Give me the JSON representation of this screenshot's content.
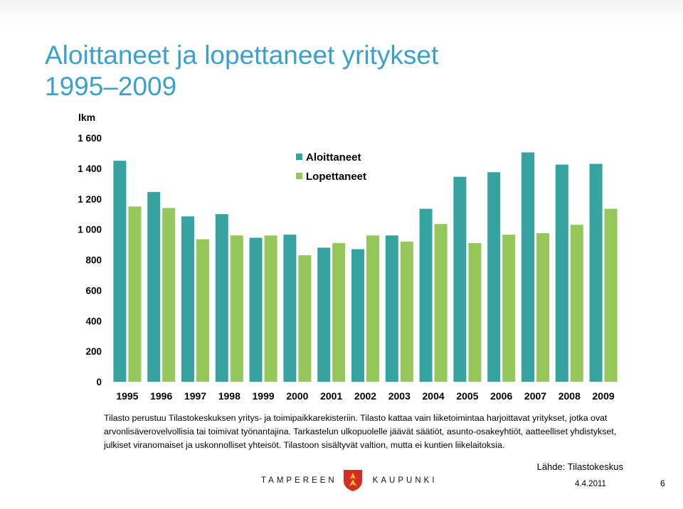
{
  "slide": {
    "title_line1": "Aloittaneet ja lopettaneet yritykset",
    "title_line2": "1995–2009",
    "note_line1": "Tilasto perustuu Tilastokeskuksen yritys- ja toimipaikkarekisteriin. Tilasto kattaa vain liiketoimintaa harjoittavat yritykset, jotka ovat arvonlisäverovelvollisia tai toimivat työnantajina. Tarkastelun ulkopuolelle jäävät säätiöt, asunto-osakeyhtiöt, aatteelliset yhdistykset, julkiset viranomaiset ja uskonnolliset yhteisöt. Tilastoon sisältyvät valtion, mutta ei kuntien liikelaitoksia.",
    "source": "Lähde: Tilastokeskus",
    "logo_left": "TAMPEREEN",
    "logo_right": "KAUPUNKI",
    "date": "4.4.2011",
    "page": "6"
  },
  "chart_data": {
    "type": "bar",
    "ylabel": "lkm",
    "ylim": [
      0,
      1600
    ],
    "yticks": [
      "0",
      "200",
      "400",
      "600",
      "800",
      "1 000",
      "1 200",
      "1 400",
      "1 600"
    ],
    "ytick_values": [
      0,
      200,
      400,
      600,
      800,
      1000,
      1200,
      1400,
      1600
    ],
    "categories": [
      "1995",
      "1996",
      "1997",
      "1998",
      "1999",
      "2000",
      "2001",
      "2002",
      "2003",
      "2004",
      "2005",
      "2006",
      "2007",
      "2008",
      "2009"
    ],
    "series": [
      {
        "name": "Aloittaneet",
        "color": "#35a39f",
        "values": [
          1450,
          1245,
          1085,
          1100,
          945,
          965,
          880,
          870,
          960,
          1135,
          1345,
          1375,
          1505,
          1425,
          1430
        ]
      },
      {
        "name": "Lopettaneet",
        "color": "#96c75a",
        "values": [
          1150,
          1140,
          935,
          960,
          960,
          830,
          910,
          960,
          920,
          1035,
          910,
          965,
          975,
          1030,
          1135
        ]
      }
    ],
    "legend_position": "top-right",
    "grid": false,
    "plot_background": "#ffffff"
  }
}
